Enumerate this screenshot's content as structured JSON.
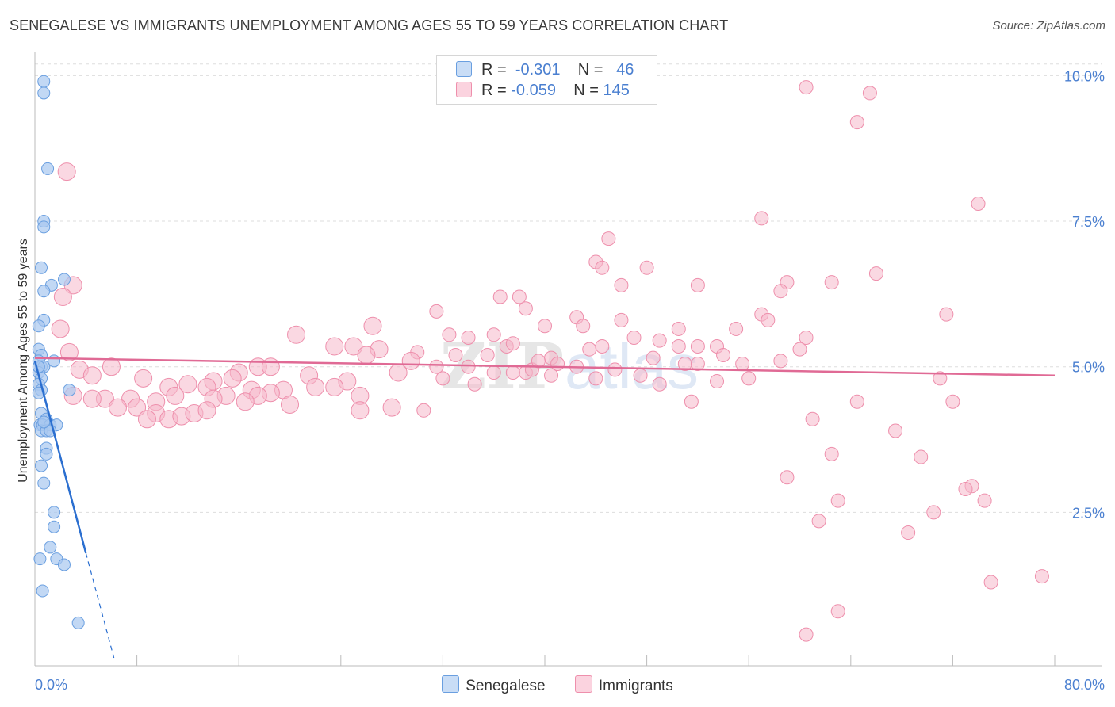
{
  "title": "SENEGALESE VS IMMIGRANTS UNEMPLOYMENT AMONG AGES 55 TO 59 YEARS CORRELATION CHART",
  "source": "Source: ZipAtlas.com",
  "watermark": "ZIPatlas",
  "legend": {
    "rows": [
      {
        "r_label": "R =",
        "r_value": "-0.301",
        "n_label": "N =",
        "n_value": "46",
        "color": "#a8c8f0"
      },
      {
        "r_label": "R =",
        "r_value": "-0.059",
        "n_label": "N =",
        "n_value": "145",
        "color": "#f6b8cb"
      }
    ]
  },
  "bottom_legend": [
    {
      "label": "Senegalese",
      "color": "#a8c8f0"
    },
    {
      "label": "Immigrants",
      "color": "#f6b8cb"
    }
  ],
  "colors": {
    "senegalese_fill": "#a8c8f0",
    "senegalese_stroke": "#6a9fe0",
    "senegalese_line": "#2b6fd0",
    "immigrants_fill": "#f6b8cb",
    "immigrants_stroke": "#ee8fac",
    "immigrants_line": "#e06a95",
    "tick_text": "#4a7fd0",
    "grid": "#dddddd"
  },
  "chart_data": {
    "type": "scatter",
    "title": "SENEGALESE VS IMMIGRANTS UNEMPLOYMENT AMONG AGES 55 TO 59 YEARS CORRELATION CHART",
    "xlabel": "",
    "ylabel": "Unemployment Among Ages 55 to 59 years",
    "xlim": [
      0,
      80
    ],
    "ylim": [
      0,
      10.4
    ],
    "x_tick_labels": [
      "0.0%",
      "80.0%"
    ],
    "y_ticks": [
      2.5,
      5.0,
      7.5,
      10.0
    ],
    "y_tick_labels": [
      "2.5%",
      "5.0%",
      "7.5%",
      "10.0%"
    ],
    "grid": true,
    "legend_position": "top-center",
    "series": [
      {
        "name": "Senegalese",
        "r": -0.301,
        "n": 46,
        "trend": {
          "x0": 0,
          "y0": 5.1,
          "x1": 4.0,
          "y1": 1.8,
          "dash_to_x": 6.2,
          "dash_to_y": 0.0
        },
        "points": [
          [
            0.7,
            9.9
          ],
          [
            0.7,
            9.7
          ],
          [
            1.0,
            8.4
          ],
          [
            0.7,
            7.5
          ],
          [
            0.7,
            7.4
          ],
          [
            0.5,
            6.7
          ],
          [
            2.3,
            6.5
          ],
          [
            1.3,
            6.4
          ],
          [
            0.7,
            6.3
          ],
          [
            0.7,
            5.8
          ],
          [
            0.3,
            5.7
          ],
          [
            0.3,
            5.3
          ],
          [
            0.5,
            5.2
          ],
          [
            0.3,
            5.1
          ],
          [
            1.5,
            5.1
          ],
          [
            0.5,
            5.0
          ],
          [
            0.7,
            5.0
          ],
          [
            0.3,
            4.9
          ],
          [
            0.5,
            4.8
          ],
          [
            0.3,
            4.7
          ],
          [
            0.5,
            4.6
          ],
          [
            0.3,
            4.55
          ],
          [
            2.7,
            4.6
          ],
          [
            0.5,
            4.2
          ],
          [
            0.9,
            4.1
          ],
          [
            0.4,
            4.0
          ],
          [
            0.6,
            4.0
          ],
          [
            1.2,
            4.0
          ],
          [
            1.7,
            4.0
          ],
          [
            0.5,
            3.9
          ],
          [
            0.9,
            3.9
          ],
          [
            1.2,
            3.9
          ],
          [
            0.9,
            3.6
          ],
          [
            0.9,
            3.5
          ],
          [
            0.5,
            3.3
          ],
          [
            0.7,
            3.0
          ],
          [
            1.5,
            2.5
          ],
          [
            1.5,
            2.25
          ],
          [
            1.2,
            1.9
          ],
          [
            0.4,
            1.7
          ],
          [
            1.7,
            1.7
          ],
          [
            2.3,
            1.6
          ],
          [
            0.6,
            1.15
          ],
          [
            3.4,
            0.6
          ],
          [
            0.3,
            5.0
          ],
          [
            0.7,
            4.05
          ]
        ]
      },
      {
        "name": "Immigrants",
        "r": -0.059,
        "n": 145,
        "trend": {
          "x0": 0,
          "y0": 5.15,
          "x1": 80,
          "y1": 4.85
        },
        "points": [
          [
            60.5,
            9.8
          ],
          [
            65.5,
            9.7
          ],
          [
            64.5,
            9.2
          ],
          [
            74.0,
            7.8
          ],
          [
            57.0,
            7.55
          ],
          [
            45.0,
            7.2
          ],
          [
            44.0,
            6.8
          ],
          [
            44.5,
            6.7
          ],
          [
            48.0,
            6.7
          ],
          [
            66.0,
            6.6
          ],
          [
            46.0,
            6.4
          ],
          [
            52.0,
            6.4
          ],
          [
            59.0,
            6.45
          ],
          [
            62.5,
            6.45
          ],
          [
            58.5,
            6.3
          ],
          [
            36.5,
            6.2
          ],
          [
            38.0,
            6.2
          ],
          [
            38.5,
            6.0
          ],
          [
            31.5,
            5.95
          ],
          [
            57.0,
            5.9
          ],
          [
            71.5,
            5.9
          ],
          [
            42.5,
            5.85
          ],
          [
            46.0,
            5.8
          ],
          [
            57.5,
            5.8
          ],
          [
            43.0,
            5.7
          ],
          [
            26.5,
            5.7
          ],
          [
            40.0,
            5.7
          ],
          [
            50.5,
            5.65
          ],
          [
            55.0,
            5.65
          ],
          [
            20.5,
            5.55
          ],
          [
            32.5,
            5.55
          ],
          [
            47.0,
            5.5
          ],
          [
            60.5,
            5.5
          ],
          [
            49.0,
            5.45
          ],
          [
            50.5,
            5.35
          ],
          [
            23.5,
            5.35
          ],
          [
            25.0,
            5.35
          ],
          [
            37.0,
            5.35
          ],
          [
            52.0,
            5.35
          ],
          [
            53.5,
            5.35
          ],
          [
            27.0,
            5.3
          ],
          [
            43.5,
            5.3
          ],
          [
            30.0,
            5.25
          ],
          [
            33.0,
            5.2
          ],
          [
            40.5,
            5.15
          ],
          [
            48.5,
            5.15
          ],
          [
            51.0,
            5.05
          ],
          [
            55.5,
            5.05
          ],
          [
            58.5,
            5.1
          ],
          [
            26.0,
            5.2
          ],
          [
            29.5,
            5.1
          ],
          [
            31.5,
            5.0
          ],
          [
            34.0,
            5.0
          ],
          [
            36.0,
            4.9
          ],
          [
            38.5,
            4.9
          ],
          [
            41.0,
            5.05
          ],
          [
            42.5,
            5.0
          ],
          [
            45.5,
            4.95
          ],
          [
            17.5,
            5.0
          ],
          [
            18.5,
            5.0
          ],
          [
            21.5,
            4.85
          ],
          [
            24.5,
            4.75
          ],
          [
            28.5,
            4.9
          ],
          [
            32.0,
            4.8
          ],
          [
            34.5,
            4.7
          ],
          [
            37.5,
            4.9
          ],
          [
            39.0,
            4.95
          ],
          [
            40.5,
            4.85
          ],
          [
            47.5,
            4.85
          ],
          [
            49.0,
            4.7
          ],
          [
            53.5,
            4.75
          ],
          [
            56.0,
            4.8
          ],
          [
            71.0,
            4.8
          ],
          [
            2.5,
            8.35
          ],
          [
            3.0,
            6.4
          ],
          [
            2.2,
            6.2
          ],
          [
            2.0,
            5.65
          ],
          [
            2.7,
            5.25
          ],
          [
            6.0,
            5.0
          ],
          [
            3.5,
            4.95
          ],
          [
            4.5,
            4.85
          ],
          [
            8.5,
            4.8
          ],
          [
            16.0,
            4.9
          ],
          [
            15.5,
            4.8
          ],
          [
            12.0,
            4.7
          ],
          [
            14.0,
            4.75
          ],
          [
            10.5,
            4.65
          ],
          [
            13.5,
            4.65
          ],
          [
            17.0,
            4.6
          ],
          [
            19.5,
            4.6
          ],
          [
            22.0,
            4.65
          ],
          [
            23.5,
            4.65
          ],
          [
            25.5,
            4.5
          ],
          [
            18.5,
            4.55
          ],
          [
            15.0,
            4.5
          ],
          [
            17.5,
            4.5
          ],
          [
            14.0,
            4.45
          ],
          [
            11.0,
            4.5
          ],
          [
            9.5,
            4.4
          ],
          [
            7.5,
            4.45
          ],
          [
            5.5,
            4.45
          ],
          [
            4.5,
            4.45
          ],
          [
            3.0,
            4.5
          ],
          [
            6.5,
            4.3
          ],
          [
            8.0,
            4.3
          ],
          [
            9.5,
            4.2
          ],
          [
            10.5,
            4.1
          ],
          [
            11.5,
            4.15
          ],
          [
            12.5,
            4.2
          ],
          [
            13.5,
            4.25
          ],
          [
            8.8,
            4.1
          ],
          [
            16.5,
            4.4
          ],
          [
            20.0,
            4.35
          ],
          [
            25.5,
            4.25
          ],
          [
            28.0,
            4.3
          ],
          [
            30.5,
            4.25
          ],
          [
            34.0,
            5.5
          ],
          [
            35.5,
            5.2
          ],
          [
            51.5,
            4.4
          ],
          [
            64.5,
            4.4
          ],
          [
            72.0,
            4.4
          ],
          [
            61.0,
            4.1
          ],
          [
            67.5,
            3.9
          ],
          [
            62.5,
            3.5
          ],
          [
            69.5,
            3.45
          ],
          [
            59.0,
            3.1
          ],
          [
            73.5,
            2.95
          ],
          [
            73.0,
            2.9
          ],
          [
            74.5,
            2.7
          ],
          [
            63.0,
            2.7
          ],
          [
            70.5,
            2.5
          ],
          [
            61.5,
            2.35
          ],
          [
            68.5,
            2.15
          ],
          [
            75.0,
            1.3
          ],
          [
            79.0,
            1.4
          ],
          [
            63.0,
            0.8
          ],
          [
            60.5,
            0.4
          ],
          [
            44.5,
            5.35
          ],
          [
            36.0,
            5.55
          ],
          [
            37.5,
            5.4
          ],
          [
            39.5,
            5.1
          ],
          [
            52.0,
            5.05
          ],
          [
            54.0,
            5.2
          ],
          [
            60.0,
            5.3
          ],
          [
            44.0,
            4.8
          ]
        ]
      }
    ]
  }
}
